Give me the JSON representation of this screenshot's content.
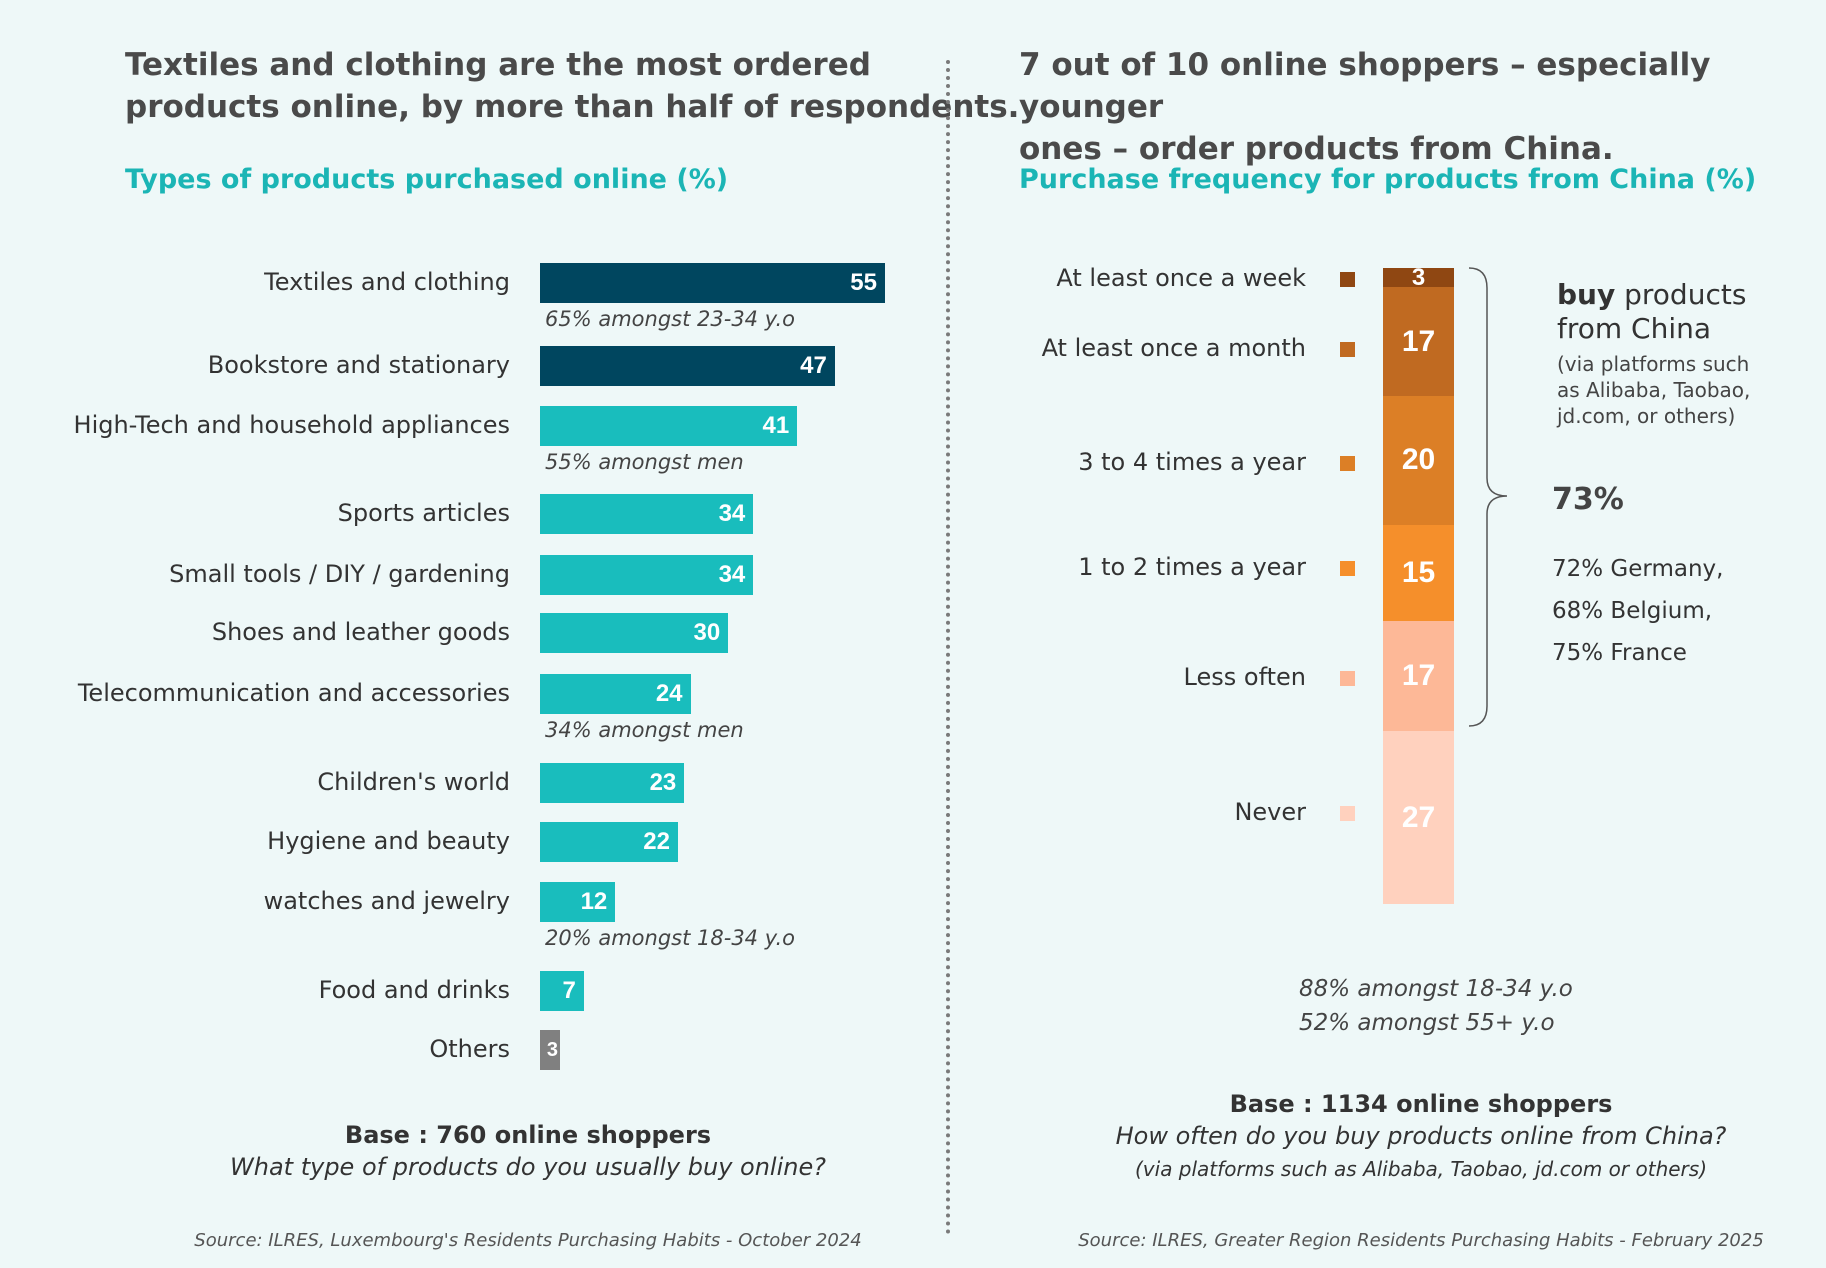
{
  "left": {
    "headline_line1": "Textiles and clothing are the most ordered",
    "headline_line2": "products online, by more than half of respondents.",
    "chart_title": "Types of products purchased online (%)",
    "base": "Base : 760 online shoppers",
    "question": "What type of products do you usually buy online?",
    "source": "Source: ILRES, Luxembourg's Residents Purchasing Habits - October 2024"
  },
  "right": {
    "headline_line1": "7 out of 10 online shoppers – especially younger",
    "headline_line2": "ones – order products from China.",
    "chart_title": "Purchase frequency for products from China (%)",
    "buy_bold": "buy",
    "buy_rest": " products",
    "buy_line2": "from China",
    "platforms_line1": "(via platforms such",
    "platforms_line2": "as Alibaba, Taobao,",
    "platforms_line3": "jd.com, or others)",
    "total": "73%",
    "country1": "72% Germany,",
    "country2": "68% Belgium,",
    "country3": "75% France",
    "age_note1": "88% amongst 18-34 y.o",
    "age_note2": "52% amongst 55+ y.o",
    "base": "Base : 1134 online shoppers",
    "question": "How often do you buy products online from China?",
    "question_sub": "(via platforms such as Alibaba, Taobao, jd.com or others)",
    "source": "Source: ILRES, Greater Region Residents Purchasing Habits - February 2025"
  },
  "chart_data": [
    {
      "type": "bar",
      "orientation": "horizontal",
      "title": "Types of products purchased online (%)",
      "categories": [
        "Textiles and clothing",
        "Bookstore and stationary",
        "High-Tech and household appliances",
        "Sports articles",
        "Small tools / DIY / gardening",
        "Shoes and leather goods",
        "Telecommunication and accessories",
        "Children's world",
        "Hygiene and beauty",
        "watches and jewelry",
        "Food and drinks",
        "Others"
      ],
      "values": [
        55,
        47,
        41,
        34,
        34,
        30,
        24,
        23,
        22,
        12,
        7,
        3
      ],
      "colors": [
        "#00465f",
        "#00465f",
        "#19bdbd",
        "#19bdbd",
        "#19bdbd",
        "#19bdbd",
        "#19bdbd",
        "#19bdbd",
        "#19bdbd",
        "#19bdbd",
        "#19bdbd",
        "#808080"
      ],
      "notes": [
        "65% amongst 23-34 y.o",
        "",
        "55% amongst men",
        "",
        "",
        "",
        "34% amongst men",
        "",
        "",
        "20% amongst 18-34 y.o",
        "",
        ""
      ],
      "xlim": [
        0,
        55
      ]
    },
    {
      "type": "bar",
      "orientation": "stacked-vertical",
      "title": "Purchase frequency for products from China (%)",
      "categories": [
        "At least once a week",
        "At least once a month",
        "3 to 4 times a year",
        "1 to 2 times a year",
        "Less often",
        "Never"
      ],
      "values": [
        3,
        17,
        20,
        15,
        17,
        27
      ],
      "colors": [
        "#8f4712",
        "#c06a21",
        "#dc7f26",
        "#f58f2b",
        "#fdb897",
        "#ffd1be"
      ],
      "ylim": [
        0,
        100
      ]
    }
  ]
}
